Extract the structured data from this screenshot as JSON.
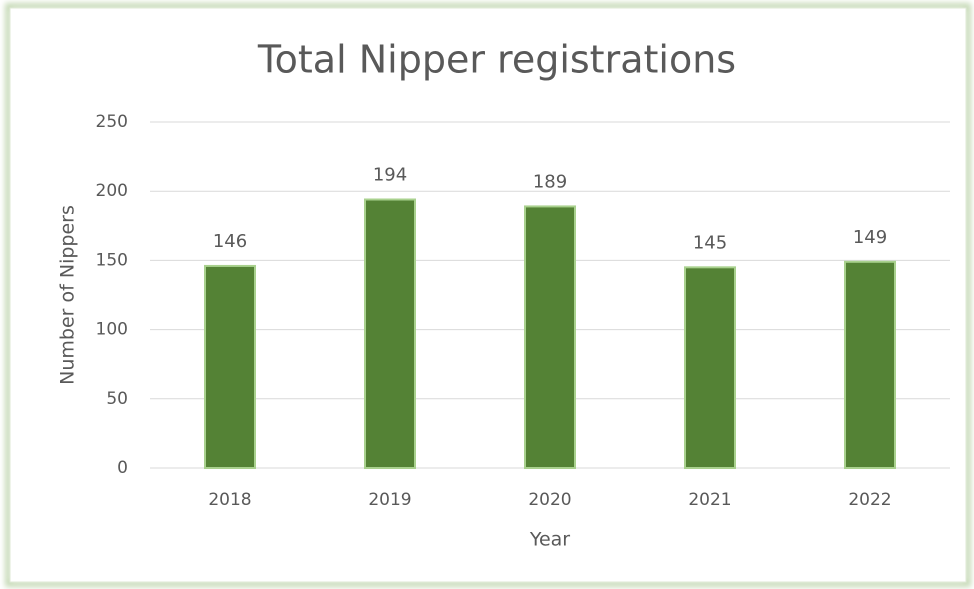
{
  "chart_data": {
    "type": "bar",
    "title": "Total Nipper registrations",
    "x_label": "Year",
    "y_label": "Number of Nippers",
    "categories": [
      "2018",
      "2019",
      "2020",
      "2021",
      "2022"
    ],
    "values": [
      146,
      194,
      189,
      145,
      149
    ],
    "color": "#548235",
    "ylim": [
      0,
      250
    ],
    "yticks": [
      0,
      50,
      100,
      150,
      200,
      250
    ],
    "grid": true
  }
}
